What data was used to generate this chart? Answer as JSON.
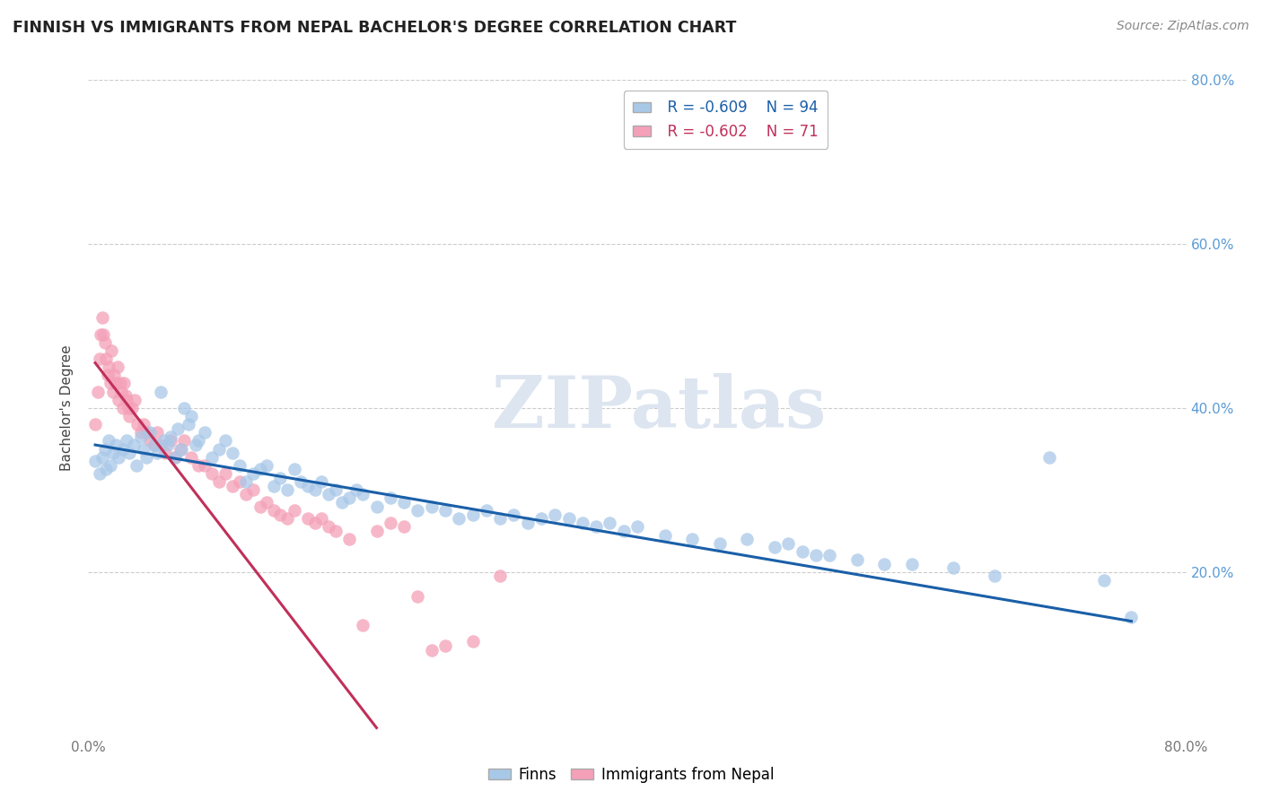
{
  "title": "FINNISH VS IMMIGRANTS FROM NEPAL BACHELOR'S DEGREE CORRELATION CHART",
  "source": "Source: ZipAtlas.com",
  "ylabel": "Bachelor's Degree",
  "xlim": [
    0.0,
    0.8
  ],
  "ylim": [
    0.0,
    0.8
  ],
  "xtick_positions": [
    0.0,
    0.2,
    0.4,
    0.6,
    0.8
  ],
  "ytick_positions": [
    0.0,
    0.2,
    0.4,
    0.6,
    0.8
  ],
  "xticklabels": [
    "0.0%",
    "",
    "",
    "",
    "80.0%"
  ],
  "right_yticklabels": [
    "",
    "20.0%",
    "40.0%",
    "60.0%",
    "80.0%"
  ],
  "finns_color": "#a8c8e8",
  "nepal_color": "#f4a0b8",
  "finns_line_color": "#1a5fa8",
  "nepal_line_color": "#c0305a",
  "watermark": "ZIPatlas",
  "watermark_color": "#dde5f0",
  "legend_R_finns": "R = -0.609",
  "legend_N_finns": "N = 94",
  "legend_R_nepal": "R = -0.602",
  "legend_N_nepal": "N = 71",
  "background_color": "#ffffff",
  "grid_color": "#cccccc",
  "finns_x": [
    0.005,
    0.008,
    0.01,
    0.012,
    0.013,
    0.015,
    0.016,
    0.018,
    0.02,
    0.022,
    0.025,
    0.028,
    0.03,
    0.033,
    0.035,
    0.038,
    0.04,
    0.042,
    0.045,
    0.048,
    0.05,
    0.053,
    0.055,
    0.058,
    0.06,
    0.063,
    0.065,
    0.068,
    0.07,
    0.073,
    0.075,
    0.078,
    0.08,
    0.085,
    0.09,
    0.095,
    0.1,
    0.105,
    0.11,
    0.115,
    0.12,
    0.125,
    0.13,
    0.135,
    0.14,
    0.145,
    0.15,
    0.155,
    0.16,
    0.165,
    0.17,
    0.175,
    0.18,
    0.185,
    0.19,
    0.195,
    0.2,
    0.21,
    0.22,
    0.23,
    0.24,
    0.25,
    0.26,
    0.27,
    0.28,
    0.29,
    0.3,
    0.31,
    0.32,
    0.33,
    0.34,
    0.35,
    0.36,
    0.37,
    0.38,
    0.39,
    0.4,
    0.42,
    0.44,
    0.46,
    0.48,
    0.5,
    0.51,
    0.52,
    0.53,
    0.54,
    0.56,
    0.58,
    0.6,
    0.63,
    0.66,
    0.7,
    0.74,
    0.76
  ],
  "finns_y": [
    0.335,
    0.32,
    0.34,
    0.35,
    0.325,
    0.36,
    0.33,
    0.345,
    0.355,
    0.34,
    0.35,
    0.36,
    0.345,
    0.355,
    0.33,
    0.365,
    0.35,
    0.34,
    0.37,
    0.355,
    0.345,
    0.42,
    0.36,
    0.355,
    0.365,
    0.34,
    0.375,
    0.35,
    0.4,
    0.38,
    0.39,
    0.355,
    0.36,
    0.37,
    0.34,
    0.35,
    0.36,
    0.345,
    0.33,
    0.31,
    0.32,
    0.325,
    0.33,
    0.305,
    0.315,
    0.3,
    0.325,
    0.31,
    0.305,
    0.3,
    0.31,
    0.295,
    0.3,
    0.285,
    0.29,
    0.3,
    0.295,
    0.28,
    0.29,
    0.285,
    0.275,
    0.28,
    0.275,
    0.265,
    0.27,
    0.275,
    0.265,
    0.27,
    0.26,
    0.265,
    0.27,
    0.265,
    0.26,
    0.255,
    0.26,
    0.25,
    0.255,
    0.245,
    0.24,
    0.235,
    0.24,
    0.23,
    0.235,
    0.225,
    0.22,
    0.22,
    0.215,
    0.21,
    0.21,
    0.205,
    0.195,
    0.34,
    0.19,
    0.145
  ],
  "nepal_x": [
    0.005,
    0.007,
    0.008,
    0.009,
    0.01,
    0.011,
    0.012,
    0.013,
    0.014,
    0.015,
    0.016,
    0.017,
    0.018,
    0.019,
    0.02,
    0.021,
    0.022,
    0.023,
    0.024,
    0.025,
    0.026,
    0.027,
    0.028,
    0.029,
    0.03,
    0.032,
    0.034,
    0.036,
    0.038,
    0.04,
    0.042,
    0.045,
    0.048,
    0.05,
    0.053,
    0.056,
    0.06,
    0.063,
    0.067,
    0.07,
    0.075,
    0.08,
    0.085,
    0.09,
    0.095,
    0.1,
    0.105,
    0.11,
    0.115,
    0.12,
    0.125,
    0.13,
    0.135,
    0.14,
    0.145,
    0.15,
    0.16,
    0.165,
    0.17,
    0.175,
    0.18,
    0.19,
    0.2,
    0.21,
    0.22,
    0.23,
    0.24,
    0.25,
    0.26,
    0.28,
    0.3
  ],
  "nepal_y": [
    0.38,
    0.42,
    0.46,
    0.49,
    0.51,
    0.49,
    0.48,
    0.46,
    0.44,
    0.45,
    0.43,
    0.47,
    0.42,
    0.44,
    0.43,
    0.45,
    0.41,
    0.43,
    0.42,
    0.4,
    0.43,
    0.415,
    0.41,
    0.4,
    0.39,
    0.4,
    0.41,
    0.38,
    0.37,
    0.38,
    0.37,
    0.36,
    0.355,
    0.37,
    0.355,
    0.345,
    0.36,
    0.34,
    0.35,
    0.36,
    0.34,
    0.33,
    0.33,
    0.32,
    0.31,
    0.32,
    0.305,
    0.31,
    0.295,
    0.3,
    0.28,
    0.285,
    0.275,
    0.27,
    0.265,
    0.275,
    0.265,
    0.26,
    0.265,
    0.255,
    0.25,
    0.24,
    0.135,
    0.25,
    0.26,
    0.255,
    0.17,
    0.105,
    0.11,
    0.115,
    0.195
  ],
  "finns_line_x": [
    0.005,
    0.76
  ],
  "finns_line_y": [
    0.355,
    0.14
  ],
  "nepal_line_x": [
    0.005,
    0.21
  ],
  "nepal_line_y": [
    0.455,
    0.01
  ]
}
